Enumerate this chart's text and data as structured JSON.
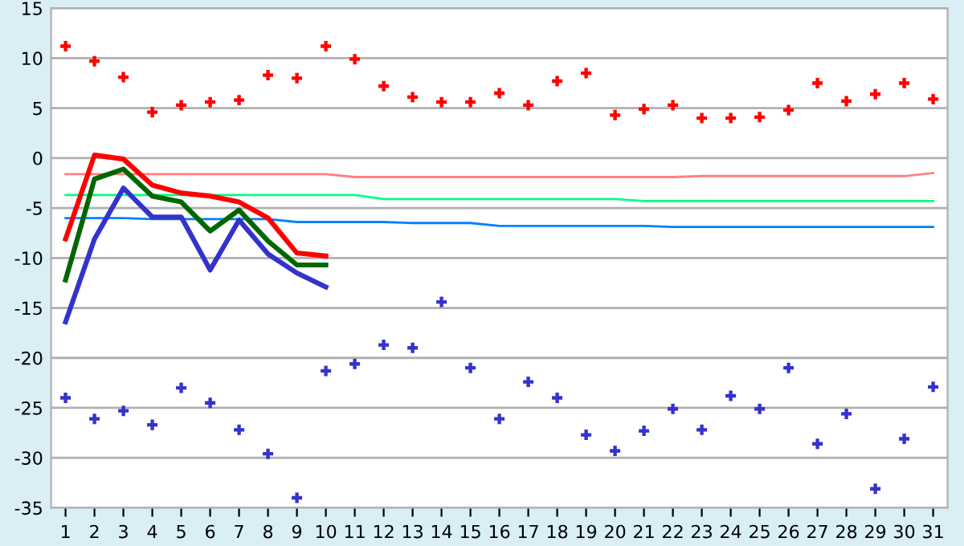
{
  "chart_data": {
    "type": "line",
    "categories": [
      "1",
      "2",
      "3",
      "4",
      "5",
      "6",
      "7",
      "8",
      "9",
      "10",
      "11",
      "12",
      "13",
      "14",
      "15",
      "16",
      "17",
      "18",
      "19",
      "20",
      "21",
      "22",
      "23",
      "24",
      "25",
      "26",
      "27",
      "28",
      "29",
      "30",
      "31"
    ],
    "ylim": [
      -35,
      15
    ],
    "yticks": [
      -35,
      -30,
      -25,
      -20,
      -15,
      -10,
      -5,
      0,
      5,
      10,
      15
    ],
    "grid": "y",
    "legend": false,
    "series": [
      {
        "type": "scatter",
        "marker": "cross",
        "color": "#ff0000",
        "values": [
          11.2,
          9.7,
          8.1,
          4.6,
          5.3,
          5.6,
          5.8,
          8.3,
          8.0,
          11.2,
          9.9,
          7.2,
          6.1,
          5.6,
          5.6,
          6.5,
          5.3,
          7.7,
          8.5,
          4.3,
          4.9,
          5.3,
          4.0,
          4.0,
          4.1,
          4.8,
          7.5,
          5.7,
          6.4,
          7.5,
          5.9
        ]
      },
      {
        "type": "scatter",
        "marker": "cross",
        "color": "#3333cc",
        "values": [
          -24.0,
          -26.1,
          -25.3,
          -26.7,
          -23.0,
          -24.5,
          -27.2,
          -29.6,
          -34.0,
          -21.3,
          -20.6,
          -18.7,
          -19.0,
          -14.4,
          -21.0,
          -26.1,
          -22.4,
          -24.0,
          -27.7,
          -29.3,
          -27.3,
          -25.1,
          -27.2,
          -23.8,
          -25.1,
          -21.0,
          -28.6,
          -25.6,
          -33.1,
          -28.1,
          -22.9
        ]
      },
      {
        "color": "#ff8080",
        "values": [
          -1.6,
          -1.6,
          -1.6,
          -1.6,
          -1.6,
          -1.6,
          -1.6,
          -1.6,
          -1.6,
          -1.6,
          -1.9,
          -1.9,
          -1.9,
          -1.9,
          -1.9,
          -1.9,
          -1.9,
          -1.9,
          -1.9,
          -1.9,
          -1.9,
          -1.9,
          -1.8,
          -1.8,
          -1.8,
          -1.8,
          -1.8,
          -1.8,
          -1.8,
          -1.8,
          -1.5
        ]
      },
      {
        "color": "#00ff80",
        "values": [
          -3.7,
          -3.7,
          -3.7,
          -3.7,
          -3.7,
          -3.7,
          -3.7,
          -3.7,
          -3.7,
          -3.7,
          -3.7,
          -4.1,
          -4.1,
          -4.1,
          -4.1,
          -4.1,
          -4.1,
          -4.1,
          -4.1,
          -4.1,
          -4.3,
          -4.3,
          -4.3,
          -4.3,
          -4.3,
          -4.3,
          -4.3,
          -4.3,
          -4.3,
          -4.3,
          -4.3
        ]
      },
      {
        "color": "#0080ff",
        "values": [
          -6.0,
          -6.0,
          -6.0,
          -6.1,
          -6.1,
          -6.1,
          -6.1,
          -6.1,
          -6.4,
          -6.4,
          -6.4,
          -6.4,
          -6.5,
          -6.5,
          -6.5,
          -6.8,
          -6.8,
          -6.8,
          -6.8,
          -6.8,
          -6.8,
          -6.9,
          -6.9,
          -6.9,
          -6.9,
          -6.9,
          -6.9,
          -6.9,
          -6.9,
          -6.9,
          -6.9
        ]
      },
      {
        "color": "#ff0000",
        "values": [
          -8.1,
          0.3,
          -0.1,
          -2.7,
          -3.5,
          -3.8,
          -4.4,
          -6.0,
          -9.5,
          -9.8,
          null,
          null,
          null,
          null,
          null,
          null,
          null,
          null,
          null,
          null,
          null,
          null,
          null,
          null,
          null,
          null,
          null,
          null,
          null,
          null,
          null
        ]
      },
      {
        "color": "#006600",
        "values": [
          -12.2,
          -2.1,
          -1.1,
          -3.8,
          -4.4,
          -7.3,
          -5.2,
          -8.3,
          -10.7,
          -10.7,
          null,
          null,
          null,
          null,
          null,
          null,
          null,
          null,
          null,
          null,
          null,
          null,
          null,
          null,
          null,
          null,
          null,
          null,
          null,
          null,
          null
        ]
      },
      {
        "color": "#3333cc",
        "values": [
          -16.4,
          -8.1,
          -3.0,
          -5.9,
          -5.9,
          -11.2,
          -6.2,
          -9.6,
          -11.5,
          -12.9,
          null,
          null,
          null,
          null,
          null,
          null,
          null,
          null,
          null,
          null,
          null,
          null,
          null,
          null,
          null,
          null,
          null,
          null,
          null,
          null,
          null
        ]
      }
    ]
  }
}
